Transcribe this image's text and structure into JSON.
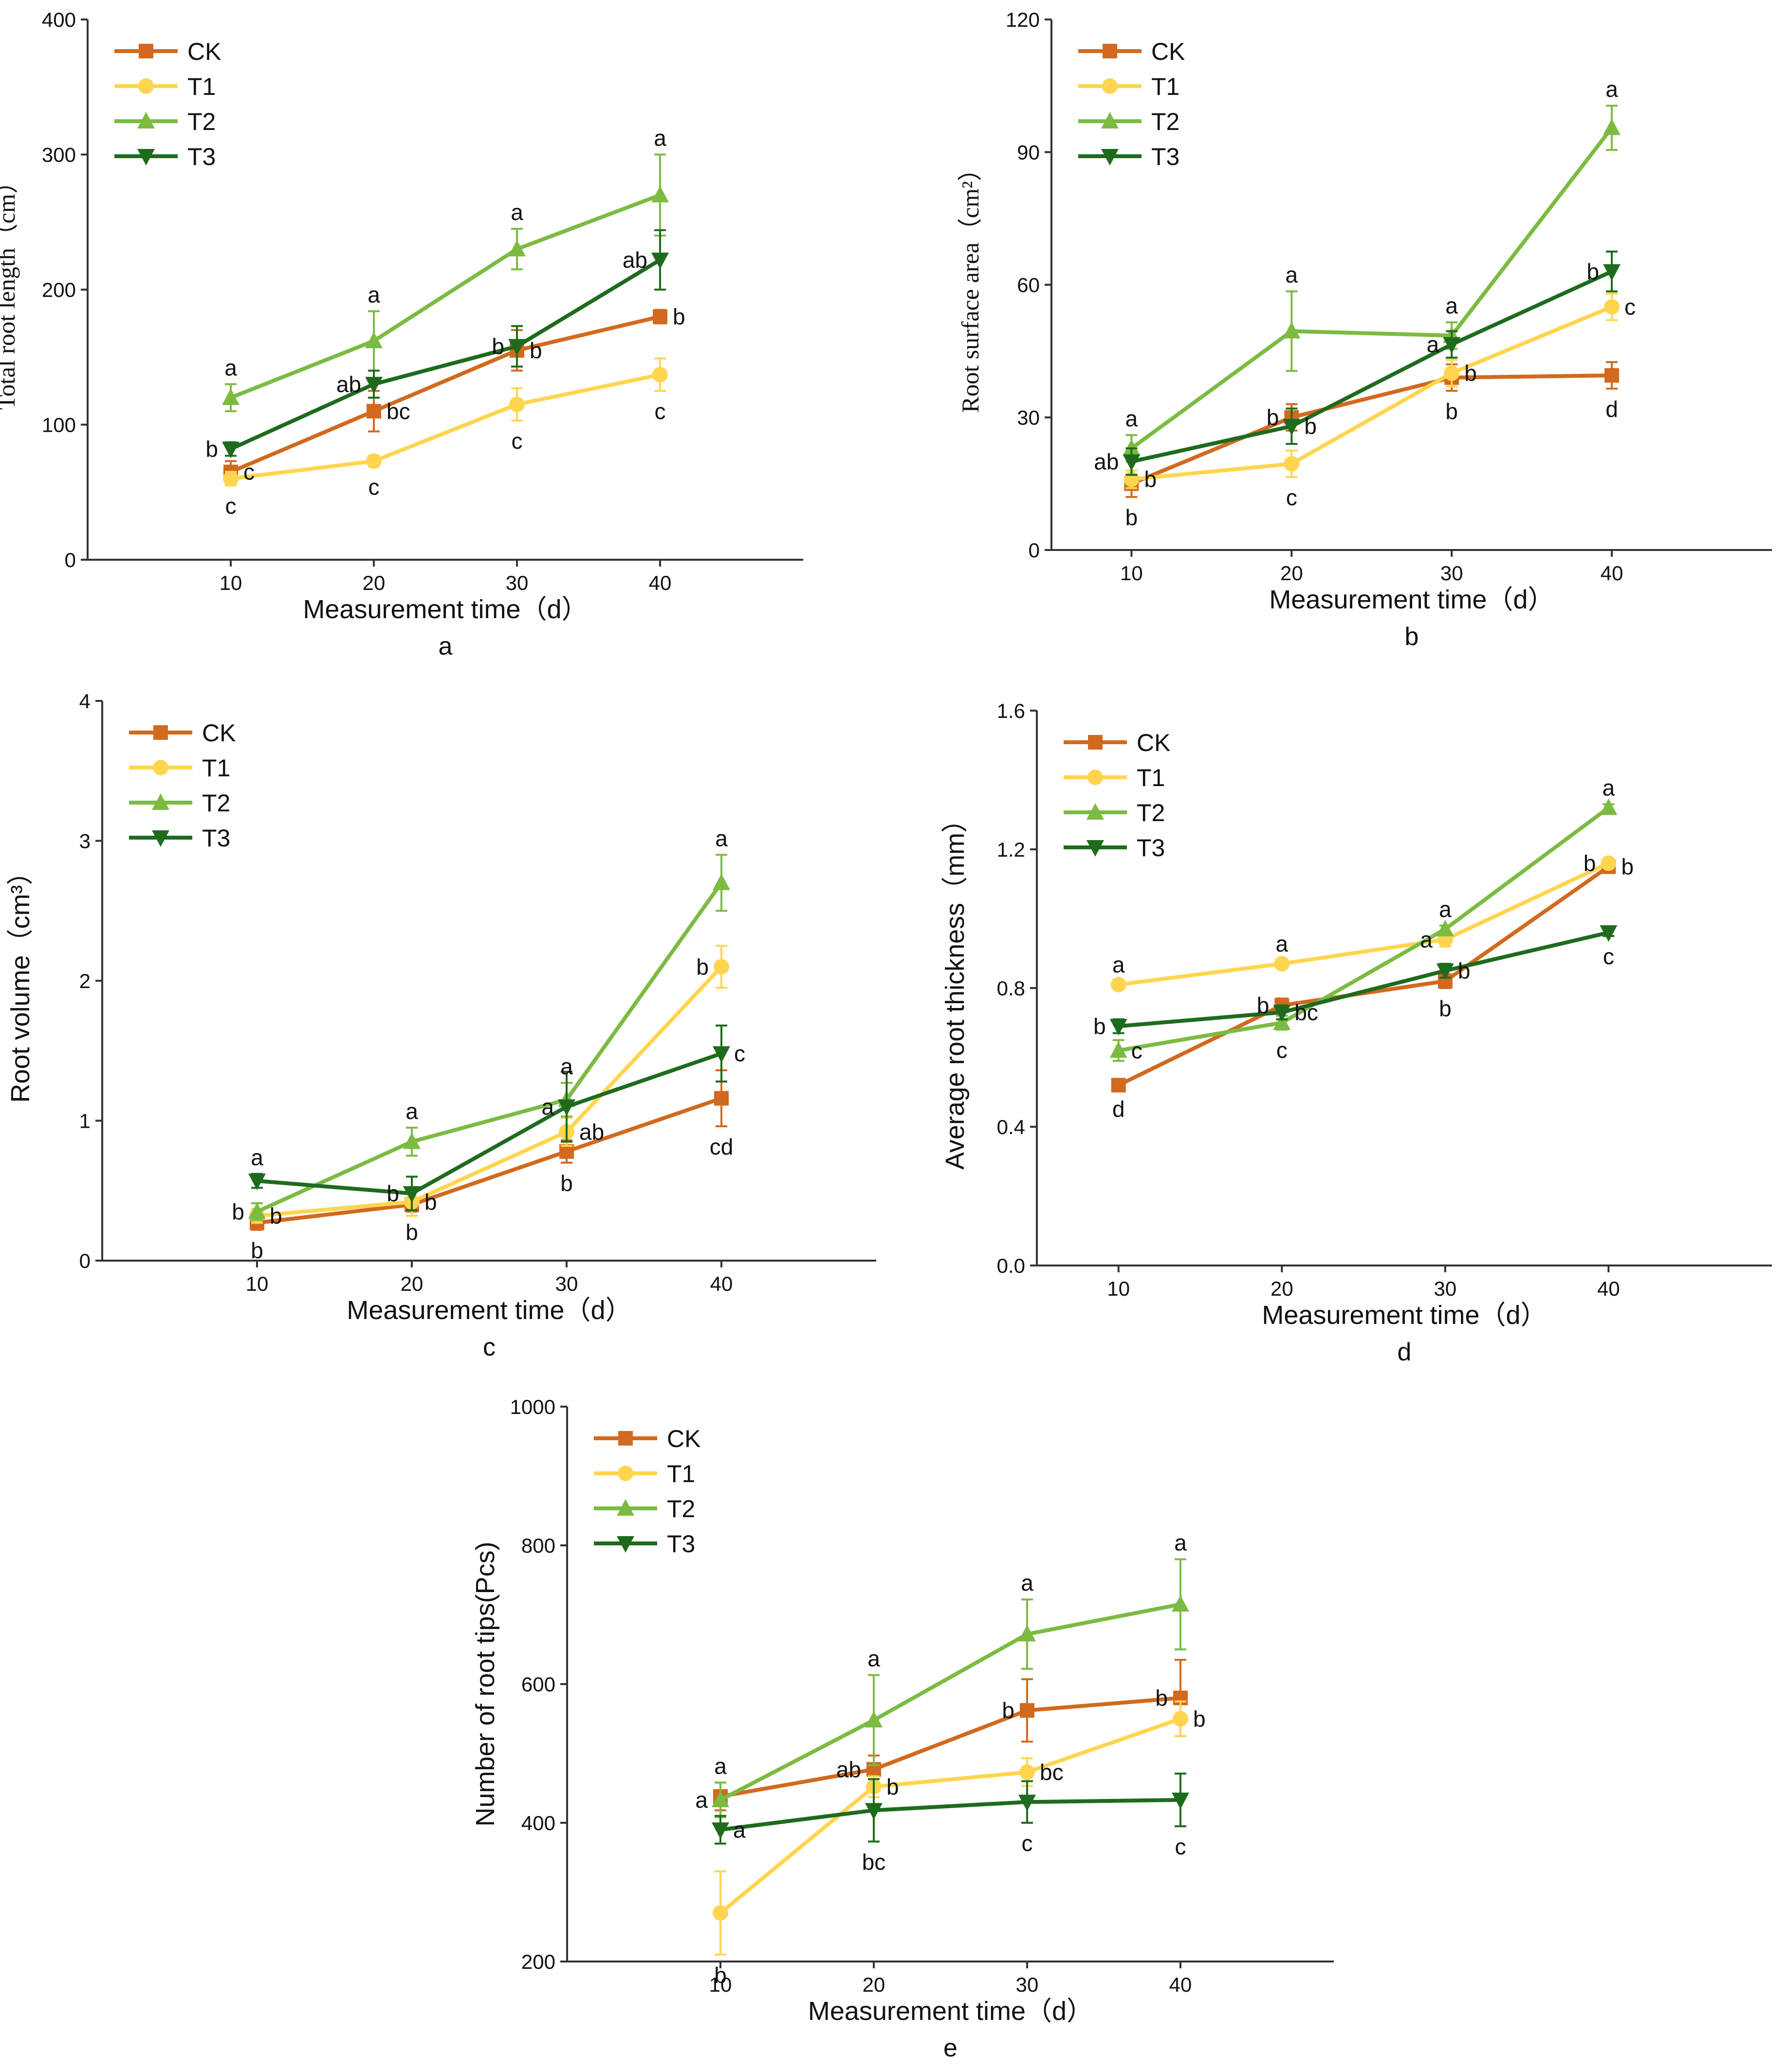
{
  "colors": {
    "CK": "#d2691e",
    "T1": "#ffd54f",
    "T2": "#7cbb42",
    "T3": "#1e6b1e",
    "axis": "#333333"
  },
  "chart_data": [
    {
      "type": "line",
      "panel_label": "a",
      "title": "",
      "xlabel": "Measurement time（d）",
      "ylabel": "Total root length（cm）",
      "x": [
        10,
        20,
        30,
        40
      ],
      "x_ticks": [
        "10",
        "20",
        "30",
        "40"
      ],
      "ylim": [
        0,
        400
      ],
      "y_ticks": [
        "0",
        "100",
        "200",
        "300",
        "400"
      ],
      "legend": [
        "CK",
        "T1",
        "T2",
        "T3"
      ],
      "series": [
        {
          "name": "CK",
          "values": [
            65,
            110,
            155,
            180
          ],
          "errors": [
            8,
            15,
            15,
            5
          ],
          "sig": [
            "c",
            "bc",
            "b",
            "b"
          ]
        },
        {
          "name": "T1",
          "values": [
            60,
            73,
            115,
            137
          ],
          "errors": [
            5,
            4,
            12,
            12
          ],
          "sig": [
            "c",
            "c",
            "c",
            "c"
          ]
        },
        {
          "name": "T2",
          "values": [
            120,
            162,
            230,
            270
          ],
          "errors": [
            10,
            22,
            15,
            30
          ],
          "sig": [
            "a",
            "a",
            "a",
            "a"
          ]
        },
        {
          "name": "T3",
          "values": [
            82,
            130,
            158,
            222
          ],
          "errors": [
            5,
            10,
            15,
            22
          ],
          "sig": [
            "b",
            "ab",
            "b",
            "ab"
          ]
        }
      ]
    },
    {
      "type": "line",
      "panel_label": "b",
      "title": "",
      "xlabel": "Measurement time（d）",
      "ylabel": "Root surface area（cm²）",
      "x": [
        10,
        20,
        30,
        40
      ],
      "x_ticks": [
        "10",
        "20",
        "30",
        "40"
      ],
      "ylim": [
        0,
        120
      ],
      "y_ticks": [
        "0",
        "30",
        "60",
        "90",
        "120"
      ],
      "legend": [
        "CK",
        "T1",
        "T2",
        "T3"
      ],
      "series": [
        {
          "name": "CK",
          "values": [
            15,
            30,
            39,
            39.5
          ],
          "errors": [
            3,
            3,
            3,
            3
          ],
          "sig": [
            "b",
            "b",
            "b",
            "d"
          ]
        },
        {
          "name": "T1",
          "values": [
            16,
            19.5,
            40,
            55
          ],
          "errors": [
            2,
            3,
            3,
            3
          ],
          "sig": [
            "b",
            "c",
            "b",
            "c"
          ]
        },
        {
          "name": "T2",
          "values": [
            23,
            49.5,
            48.5,
            95.5
          ],
          "errors": [
            3,
            9,
            3,
            5
          ],
          "sig": [
            "a",
            "a",
            "a",
            "a"
          ]
        },
        {
          "name": "T3",
          "values": [
            20,
            28,
            46.5,
            63
          ],
          "errors": [
            3,
            4,
            3,
            4.5
          ],
          "sig": [
            "ab",
            "b",
            "a",
            "b"
          ]
        }
      ]
    },
    {
      "type": "line",
      "panel_label": "c",
      "title": "",
      "xlabel": "Measurement time（d）",
      "ylabel": "Root volume（cm³）",
      "x": [
        10,
        20,
        30,
        40
      ],
      "x_ticks": [
        "10",
        "20",
        "30",
        "40"
      ],
      "ylim": [
        0,
        4
      ],
      "y_ticks": [
        "0",
        "1",
        "2",
        "3",
        "4"
      ],
      "legend": [
        "CK",
        "T1",
        "T2",
        "T3"
      ],
      "series": [
        {
          "name": "CK",
          "values": [
            0.27,
            0.4,
            0.78,
            1.16
          ],
          "errors": [
            0.05,
            0.05,
            0.08,
            0.2
          ],
          "sig": [
            "b",
            "b",
            "b",
            "cd"
          ]
        },
        {
          "name": "T1",
          "values": [
            0.32,
            0.42,
            0.92,
            2.1
          ],
          "errors": [
            0.05,
            0.1,
            0.1,
            0.15
          ],
          "sig": [
            "b",
            "b",
            "ab",
            "b"
          ]
        },
        {
          "name": "T2",
          "values": [
            0.35,
            0.85,
            1.15,
            2.7
          ],
          "errors": [
            0.06,
            0.1,
            0.12,
            0.2
          ],
          "sig": [
            "b",
            "a",
            "a",
            "a"
          ]
        },
        {
          "name": "T3",
          "values": [
            0.57,
            0.48,
            1.1,
            1.48
          ],
          "errors": [
            0.05,
            0.12,
            0.25,
            0.2
          ],
          "sig": [
            "a",
            "b",
            "a",
            "c"
          ]
        }
      ]
    },
    {
      "type": "line",
      "panel_label": "d",
      "title": "",
      "xlabel": "Measurement time（d）",
      "ylabel": "Average root thickness（mm）",
      "x": [
        10,
        20,
        30,
        40
      ],
      "x_ticks": [
        "10",
        "20",
        "30",
        "40"
      ],
      "ylim": [
        0,
        1.6
      ],
      "y_ticks": [
        "0.0",
        "0.4",
        "0.8",
        "1.2",
        "1.6"
      ],
      "legend": [
        "CK",
        "T1",
        "T2",
        "T3"
      ],
      "series": [
        {
          "name": "CK",
          "values": [
            0.52,
            0.75,
            0.82,
            1.15
          ],
          "errors": [
            0.01,
            0.02,
            0.02,
            0.01
          ],
          "sig": [
            "d",
            "b",
            "b",
            "b"
          ]
        },
        {
          "name": "T1",
          "values": [
            0.81,
            0.87,
            0.94,
            1.16
          ],
          "errors": [
            0.01,
            0.01,
            0.02,
            0.01
          ],
          "sig": [
            "a",
            "a",
            "a",
            "b"
          ]
        },
        {
          "name": "T2",
          "values": [
            0.62,
            0.7,
            0.97,
            1.32
          ],
          "errors": [
            0.03,
            0.02,
            0.01,
            0.01
          ],
          "sig": [
            "c",
            "c",
            "a",
            "a"
          ]
        },
        {
          "name": "T3",
          "values": [
            0.69,
            0.73,
            0.85,
            0.96
          ],
          "errors": [
            0.02,
            0.02,
            0.02,
            0.01
          ],
          "sig": [
            "b",
            "bc",
            "b",
            "c"
          ]
        }
      ]
    },
    {
      "type": "line",
      "panel_label": "e",
      "title": "",
      "xlabel": "Measurement time（d）",
      "ylabel": "Number of root tips(Pcs)",
      "x": [
        10,
        20,
        30,
        40
      ],
      "x_ticks": [
        "10",
        "20",
        "30",
        "40"
      ],
      "ylim": [
        200,
        1000
      ],
      "y_ticks": [
        "200",
        "400",
        "600",
        "800",
        "1000"
      ],
      "legend": [
        "CK",
        "T1",
        "T2",
        "T3"
      ],
      "series": [
        {
          "name": "CK",
          "values": [
            438,
            477,
            562,
            580
          ],
          "errors": [
            20,
            20,
            45,
            55
          ],
          "sig": [
            "a",
            "ab",
            "b",
            "b"
          ]
        },
        {
          "name": "T1",
          "values": [
            270,
            452,
            473,
            550
          ],
          "errors": [
            60,
            15,
            20,
            25
          ],
          "sig": [
            "b",
            "b",
            "bc",
            "b"
          ]
        },
        {
          "name": "T2",
          "values": [
            433,
            548,
            672,
            715
          ],
          "errors": [
            25,
            65,
            50,
            65
          ],
          "sig": [
            "a",
            "a",
            "a",
            "a"
          ]
        },
        {
          "name": "T3",
          "values": [
            390,
            418,
            430,
            433
          ],
          "errors": [
            20,
            45,
            30,
            38
          ],
          "sig": [
            "a",
            "bc",
            "c",
            "c"
          ]
        }
      ]
    }
  ]
}
